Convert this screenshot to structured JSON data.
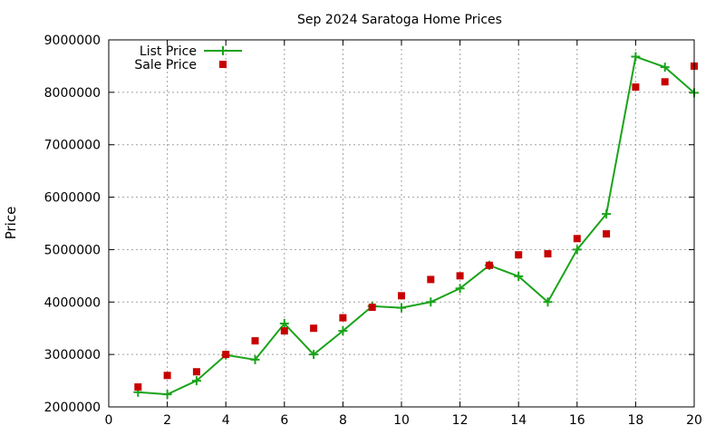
{
  "chart_data": {
    "type": "line",
    "title": "Sep 2024 Saratoga Home Prices",
    "xlabel": "",
    "ylabel": "Price",
    "xlim": [
      0,
      20
    ],
    "ylim": [
      2000000,
      9000000
    ],
    "x_ticks": [
      "0",
      "2",
      "4",
      "6",
      "8",
      "10",
      "12",
      "14",
      "16",
      "18",
      "20"
    ],
    "y_ticks": [
      "2000000",
      "3000000",
      "4000000",
      "5000000",
      "6000000",
      "7000000",
      "8000000",
      "9000000"
    ],
    "grid": true,
    "legend_position": "top-left",
    "x": [
      1,
      2,
      3,
      4,
      5,
      6,
      7,
      8,
      9,
      10,
      11,
      12,
      13,
      14,
      15,
      16,
      17,
      18,
      19,
      20
    ],
    "series": [
      {
        "name": "List Price",
        "style": "line-with-plus-markers",
        "color": "#1aa31a",
        "values": [
          2280000,
          2240000,
          2500000,
          2990000,
          2900000,
          3590000,
          3000000,
          3450000,
          3920000,
          3890000,
          4000000,
          4260000,
          4700000,
          4490000,
          4000000,
          5000000,
          5680000,
          8680000,
          8480000,
          7990000
        ]
      },
      {
        "name": "Sale Price",
        "style": "square-markers",
        "color": "#c80000",
        "values": [
          2380000,
          2600000,
          2670000,
          3000000,
          3260000,
          3450000,
          3500000,
          3700000,
          3900000,
          4120000,
          4430000,
          4500000,
          4700000,
          4900000,
          4920000,
          5210000,
          5300000,
          8100000,
          8200000,
          8500000
        ]
      }
    ]
  }
}
